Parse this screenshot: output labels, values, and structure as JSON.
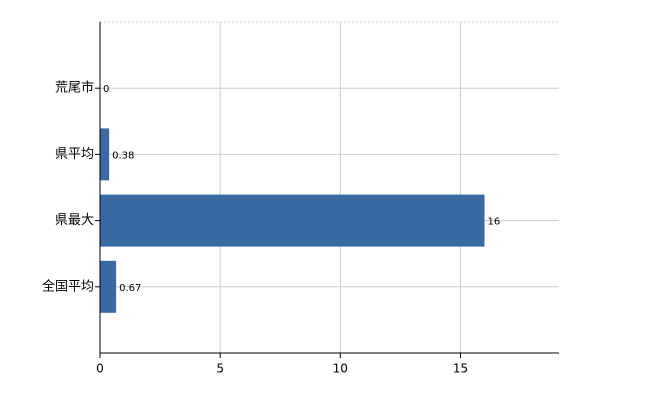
{
  "chart_data": {
    "type": "bar",
    "orientation": "horizontal",
    "categories": [
      "荒尾市",
      "県平均",
      "県最大",
      "全国平均"
    ],
    "values": [
      0,
      0.38,
      16,
      0.67
    ],
    "color": "#3a6aa3",
    "xlim": [
      0,
      19.1
    ],
    "xticks": [
      0,
      5,
      10,
      15
    ],
    "grid": true
  }
}
